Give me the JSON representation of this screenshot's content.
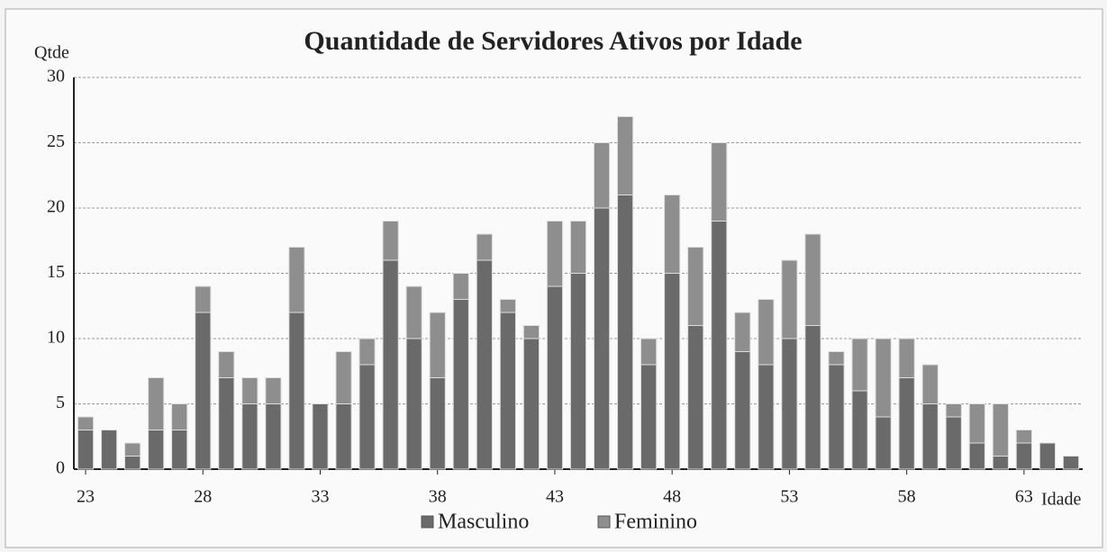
{
  "chart_data": {
    "type": "stacked_bar",
    "title": "Quantidade de Servidores Ativos por Idade",
    "y_label": "Qtde",
    "x_label": "Idade",
    "categories": [
      "23",
      null,
      null,
      null,
      null,
      "28",
      null,
      null,
      null,
      null,
      "33",
      null,
      null,
      null,
      null,
      "38",
      null,
      null,
      null,
      null,
      "43",
      null,
      null,
      null,
      null,
      "48",
      null,
      null,
      null,
      null,
      "53",
      null,
      null,
      null,
      null,
      "58",
      null,
      null,
      null,
      null,
      "63",
      null,
      null
    ],
    "series": [
      {
        "name": "Masculino",
        "color": "#6a6a6a",
        "values": [
          3,
          3,
          1,
          3,
          3,
          12,
          7,
          5,
          5,
          12,
          5,
          5,
          8,
          16,
          10,
          7,
          13,
          16,
          12,
          10,
          14,
          15,
          20,
          21,
          8,
          15,
          11,
          19,
          9,
          8,
          10,
          11,
          8,
          6,
          4,
          7,
          5,
          4,
          2,
          1,
          2,
          2,
          1
        ]
      },
      {
        "name": "Feminino",
        "color": "#8e8e8e",
        "values": [
          1,
          0,
          1,
          4,
          2,
          2,
          2,
          2,
          2,
          5,
          0,
          4,
          2,
          3,
          4,
          5,
          2,
          2,
          1,
          1,
          5,
          4,
          5,
          6,
          2,
          6,
          6,
          6,
          3,
          5,
          6,
          7,
          1,
          4,
          6,
          3,
          3,
          1,
          3,
          4,
          1,
          0,
          0
        ]
      }
    ],
    "ylim": [
      0,
      30
    ],
    "yticks": [
      0,
      5,
      10,
      15,
      20,
      25,
      30
    ],
    "grid": true,
    "legend": "bottom"
  }
}
